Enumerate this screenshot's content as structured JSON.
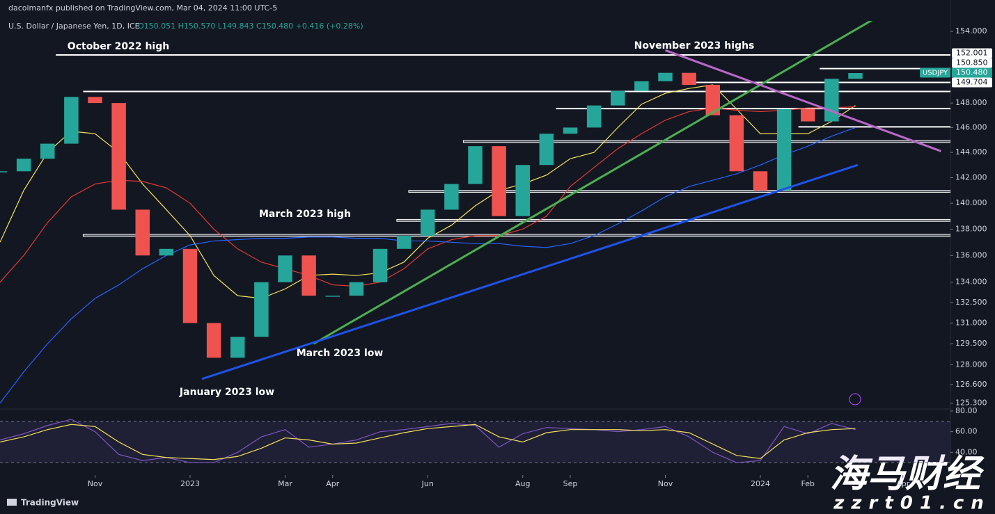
{
  "header": {
    "published": "dacolmanfx published on TradingView.com, Mar 04, 2024 11:00 UTC-5"
  },
  "chart_data": {
    "type": "candlestick",
    "symbol": "U.S. Dollar / Japanese Yen, 1D, ICE",
    "ohlc": "O150.051 H150.570 L149.843 C150.480 +0.416 (+0.28%)",
    "log_scale": true,
    "xlim": [
      0,
      40
    ],
    "xticks": [
      {
        "value": 4,
        "label": "Nov"
      },
      {
        "value": 8,
        "label": "2023"
      },
      {
        "value": 12,
        "label": "Mar"
      },
      {
        "value": 14,
        "label": "Apr"
      },
      {
        "value": 18,
        "label": "Jun"
      },
      {
        "value": 22,
        "label": "Aug"
      },
      {
        "value": 24,
        "label": "Sep"
      },
      {
        "value": 28,
        "label": "Nov"
      },
      {
        "value": 32,
        "label": "2024"
      },
      {
        "value": 34,
        "label": "Feb"
      },
      {
        "value": 38,
        "label": "Apr"
      }
    ],
    "ylim": [
      124.9,
      154.9
    ],
    "yticks": [
      {
        "value": 154,
        "label": "154.000"
      },
      {
        "value": 148,
        "label": "148.000"
      },
      {
        "value": 146,
        "label": "146.000"
      },
      {
        "value": 144,
        "label": "144.000"
      },
      {
        "value": 142,
        "label": "142.000"
      },
      {
        "value": 140,
        "label": "140.000"
      },
      {
        "value": 138,
        "label": "138.000"
      },
      {
        "value": 136,
        "label": "136.000"
      },
      {
        "value": 134,
        "label": "134.000"
      },
      {
        "value": 132.5,
        "label": "132.500"
      },
      {
        "value": 131,
        "label": "131.000"
      },
      {
        "value": 129.5,
        "label": "129.500"
      },
      {
        "value": 128,
        "label": "128.000"
      },
      {
        "value": 126.6,
        "label": "126.600"
      },
      {
        "value": 125.3,
        "label": "125.300"
      }
    ],
    "series": [
      {
        "name": "USDJPY",
        "up_color": "#26a69a",
        "down_color": "#ef5350",
        "values": [
          142.5,
          143.5,
          144.7,
          148.5,
          148,
          139.5,
          136,
          136.5,
          131,
          128.5,
          130,
          134,
          136,
          133,
          133,
          134,
          136.5,
          137.5,
          139.5,
          141.5,
          144.5,
          139,
          143,
          145.5,
          146,
          147.8,
          149,
          149.8,
          150.5,
          149.5,
          147,
          142.5,
          141,
          147.5,
          146.5,
          150,
          150.48
        ]
      }
    ],
    "overlays": [
      {
        "color": "#f5e35b",
        "values": [
          137,
          141,
          144,
          145.7,
          145.5,
          144,
          141.5,
          139.5,
          137.5,
          134.5,
          133,
          132.8,
          133.5,
          134.5,
          134.6,
          134.5,
          134.7,
          135.5,
          137.3,
          138.3,
          139.8,
          141,
          141.5,
          142.2,
          143.5,
          144,
          146,
          147.9,
          148.8,
          149.2,
          149.5,
          147.5,
          145.5,
          145.5,
          145.5,
          146.5,
          147.8
        ]
      },
      {
        "color": "#e53935",
        "values": [
          134,
          136,
          138.5,
          140.5,
          141.5,
          141.8,
          141.7,
          141.2,
          140,
          138,
          136.5,
          135.5,
          135,
          134.5,
          133.8,
          133.7,
          134,
          135,
          136.5,
          137.2,
          137.5,
          137.5,
          138,
          139,
          141.3,
          142.8,
          144.3,
          145.5,
          146.6,
          147.3,
          147.6,
          147.4,
          147.3,
          147.4,
          147.6,
          147.6,
          147.7
        ]
      },
      {
        "color": "#2962ff",
        "values": [
          125.3,
          127.5,
          129.5,
          131.3,
          132.8,
          133.8,
          135,
          136,
          136.8,
          137.1,
          137.2,
          137.3,
          137.3,
          137.4,
          137.4,
          137.3,
          137.3,
          137.1,
          137.1,
          137,
          136.9,
          136.9,
          136.7,
          136.6,
          136.9,
          137.5,
          138.4,
          139.4,
          140.5,
          141.3,
          141.8,
          142.3,
          143,
          143.8,
          144.5,
          145.3,
          146
        ]
      }
    ],
    "levels": [
      {
        "value": 152.001,
        "from": 2.35
      },
      {
        "value": 150.85,
        "from": 34.5
      },
      {
        "value": 149.704,
        "from": 29.2
      },
      {
        "value": 148.95,
        "from": 3.5
      },
      {
        "value": 147.54,
        "from": 23.4
      },
      {
        "value": 146.06,
        "from": 33.6
      }
    ],
    "zones": [
      {
        "range": [
          144.8,
          144.95
        ],
        "from": 19.5
      },
      {
        "range": [
          140.85,
          141
        ],
        "from": 17.2
      },
      {
        "range": [
          138.6,
          138.75
        ],
        "from": 16.7
      },
      {
        "range": [
          137.45,
          137.6
        ],
        "from": 3.5
      }
    ],
    "trendlines": [
      {
        "color": "#4caf50",
        "points": [
          [
            13.2,
            129.5
          ],
          [
            36.9,
            155.2
          ]
        ]
      },
      {
        "color": "#ba68c8",
        "points": [
          [
            28,
            152.4
          ],
          [
            39.6,
            144.1
          ]
        ]
      },
      {
        "color": "#1e53e5",
        "points": [
          [
            8.5,
            127
          ],
          [
            36.1,
            143
          ]
        ]
      }
    ],
    "annotations": [
      "October 2022 high",
      "November 2023 highs",
      "March 2023 high",
      "March 2023 low",
      "January 2023 low"
    ],
    "price_tags": [
      {
        "value": 152.001,
        "label": "152.001"
      },
      {
        "value": 150.85,
        "label": "150.850"
      },
      {
        "value": 150.48,
        "label": "150.480"
      },
      {
        "value": 149.704,
        "label": "149.704"
      }
    ],
    "rsi": {
      "ylim": [
        18,
        82
      ],
      "yticks": [
        {
          "value": 80,
          "label": "80.00"
        },
        {
          "value": 60,
          "label": "60.00"
        },
        {
          "value": 40,
          "label": "40.00"
        }
      ],
      "bands": [
        30,
        70
      ],
      "color": "#7e57c2",
      "signal_color": "#f5e35b",
      "values": [
        52,
        58,
        66,
        72,
        60,
        38,
        32,
        35,
        30,
        30,
        40,
        55,
        62,
        45,
        48,
        52,
        60,
        62,
        65,
        68,
        66,
        45,
        58,
        64,
        63,
        62,
        60,
        62,
        65,
        55,
        40,
        30,
        32,
        65,
        58,
        68,
        62
      ],
      "signal": [
        50,
        55,
        62,
        67,
        65,
        50,
        38,
        35,
        34,
        33,
        36,
        44,
        54,
        52,
        48,
        49,
        54,
        59,
        63,
        65,
        67,
        55,
        50,
        59,
        62,
        62,
        62,
        61,
        62,
        59,
        48,
        37,
        34,
        52,
        59,
        62,
        63
      ]
    }
  },
  "footer": {
    "brand": "TradingView"
  },
  "watermark": {
    "title": "海马财经",
    "url": "zzrt01.cn"
  }
}
